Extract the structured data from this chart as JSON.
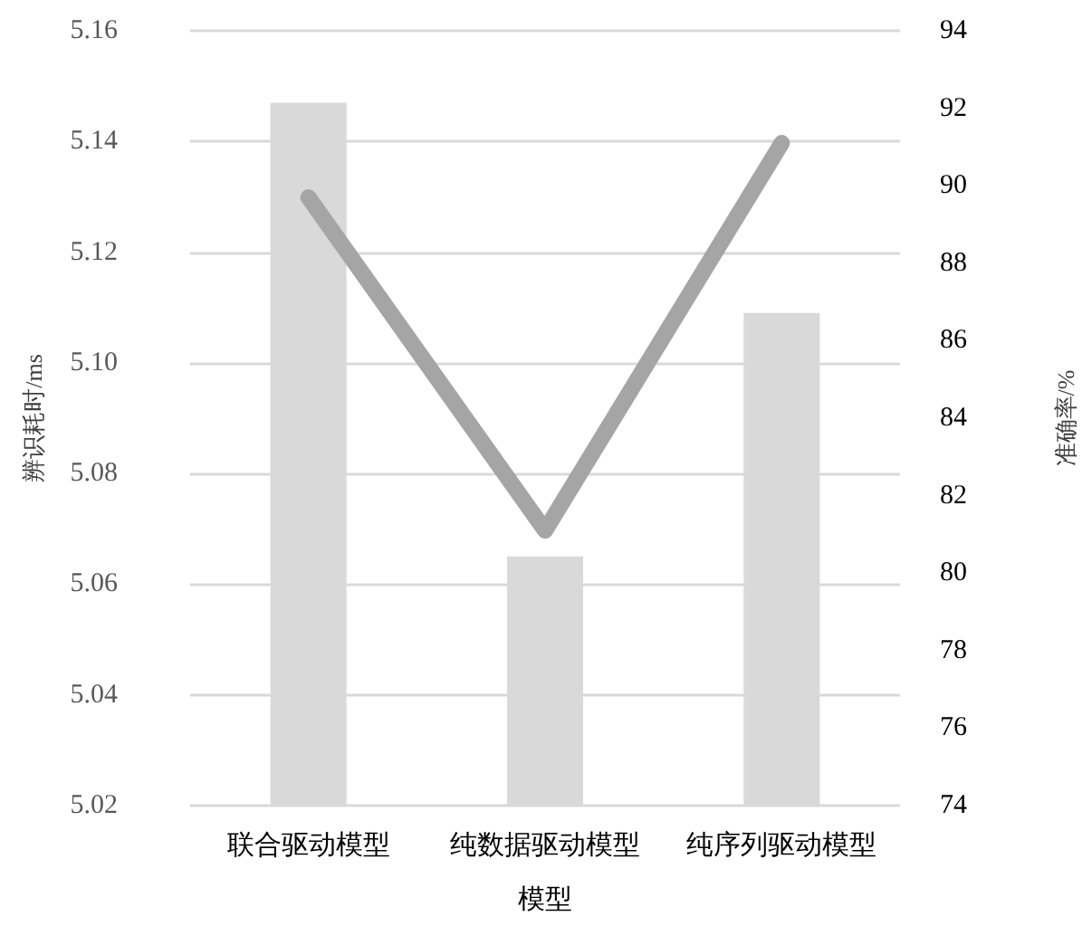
{
  "chart_data": {
    "type": "bar",
    "xlabel": "模型",
    "ylabel": "辨识耗时/ms",
    "y2label": "准确率/%",
    "categories": [
      "联合驱动模型",
      "纯数据驱动模型",
      "纯序列驱动模型"
    ],
    "series": [
      {
        "color": "#d9d9d9",
        "values": [
          5.147,
          5.065,
          5.109
        ]
      },
      {
        "type": "line",
        "axis": "y2",
        "color": "#a5a5a5",
        "values": [
          89.7,
          81.1,
          91.1
        ]
      }
    ],
    "ylim": [
      5.02,
      5.16
    ],
    "yticks": [
      5.02,
      5.04,
      5.06,
      5.08,
      {
        "value": 5.1,
        "label": "5.10"
      },
      5.12,
      5.14,
      5.16
    ],
    "y2lim": [
      74,
      94
    ],
    "y2ticks": [
      74,
      76,
      78,
      80,
      82,
      84,
      86,
      88,
      90,
      92,
      94
    ],
    "grid": "y",
    "line_style": "solid"
  }
}
